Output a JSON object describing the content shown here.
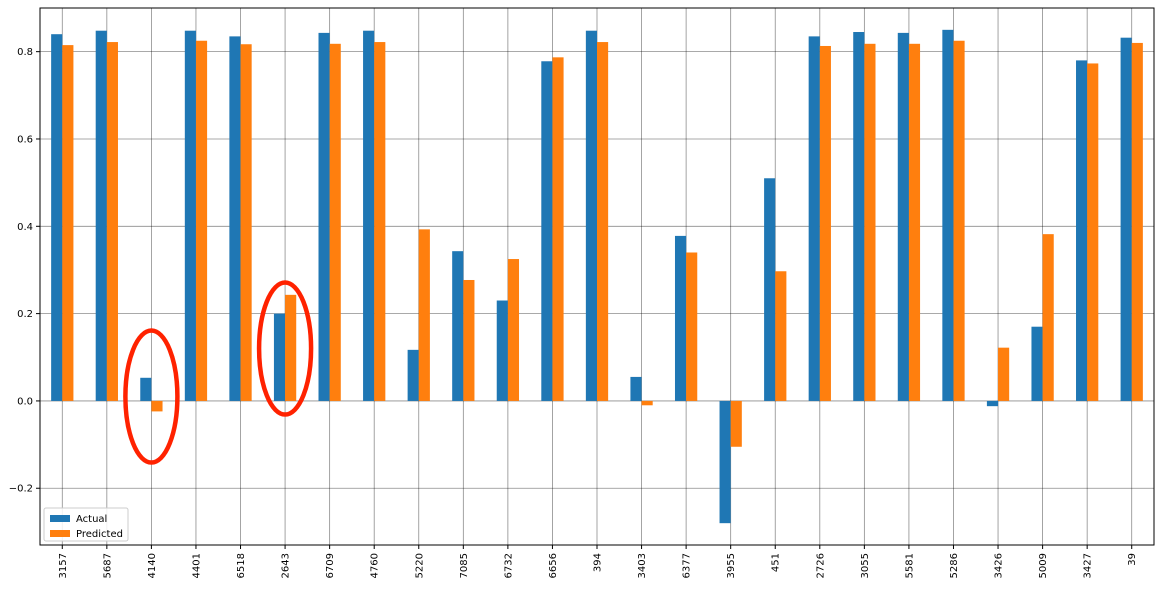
{
  "chart_data": {
    "type": "bar",
    "title": "",
    "xlabel": "",
    "ylabel": "",
    "categories": [
      "3157",
      "5687",
      "4140",
      "4401",
      "6518",
      "2643",
      "6709",
      "4760",
      "5220",
      "7085",
      "6732",
      "6656",
      "394",
      "3403",
      "6377",
      "3955",
      "451",
      "2726",
      "3055",
      "5581",
      "5286",
      "3426",
      "5009",
      "3427",
      "39"
    ],
    "series": [
      {
        "name": "Actual",
        "color": "#1f77b4",
        "values": [
          0.84,
          0.848,
          0.053,
          0.848,
          0.835,
          0.2,
          0.843,
          0.848,
          0.117,
          0.343,
          0.23,
          0.778,
          0.848,
          0.055,
          0.378,
          -0.28,
          0.51,
          0.835,
          0.845,
          0.843,
          0.85,
          -0.012,
          0.17,
          0.78,
          0.832
        ]
      },
      {
        "name": "Predicted",
        "color": "#ff7f0e",
        "values": [
          0.815,
          0.822,
          -0.024,
          0.825,
          0.817,
          0.243,
          0.818,
          0.822,
          0.393,
          0.277,
          0.325,
          0.787,
          0.822,
          -0.01,
          0.34,
          -0.105,
          0.297,
          0.813,
          0.818,
          0.818,
          0.825,
          0.122,
          0.382,
          0.773,
          0.82
        ]
      }
    ],
    "ylim": [
      -0.33,
      0.9
    ],
    "yticks": [
      -0.2,
      0.0,
      0.2,
      0.4,
      0.6,
      0.8
    ],
    "ytick_labels": [
      "−0.2",
      "0.0",
      "0.2",
      "0.4",
      "0.6",
      "0.8"
    ],
    "grid": true,
    "legend_position": "lower-left",
    "annotations": [
      {
        "type": "ellipse",
        "color": "#ff2200",
        "category": "4140",
        "y_center": 0.01
      },
      {
        "type": "ellipse",
        "color": "#ff2200",
        "category": "2643",
        "y_center": 0.12
      }
    ]
  }
}
